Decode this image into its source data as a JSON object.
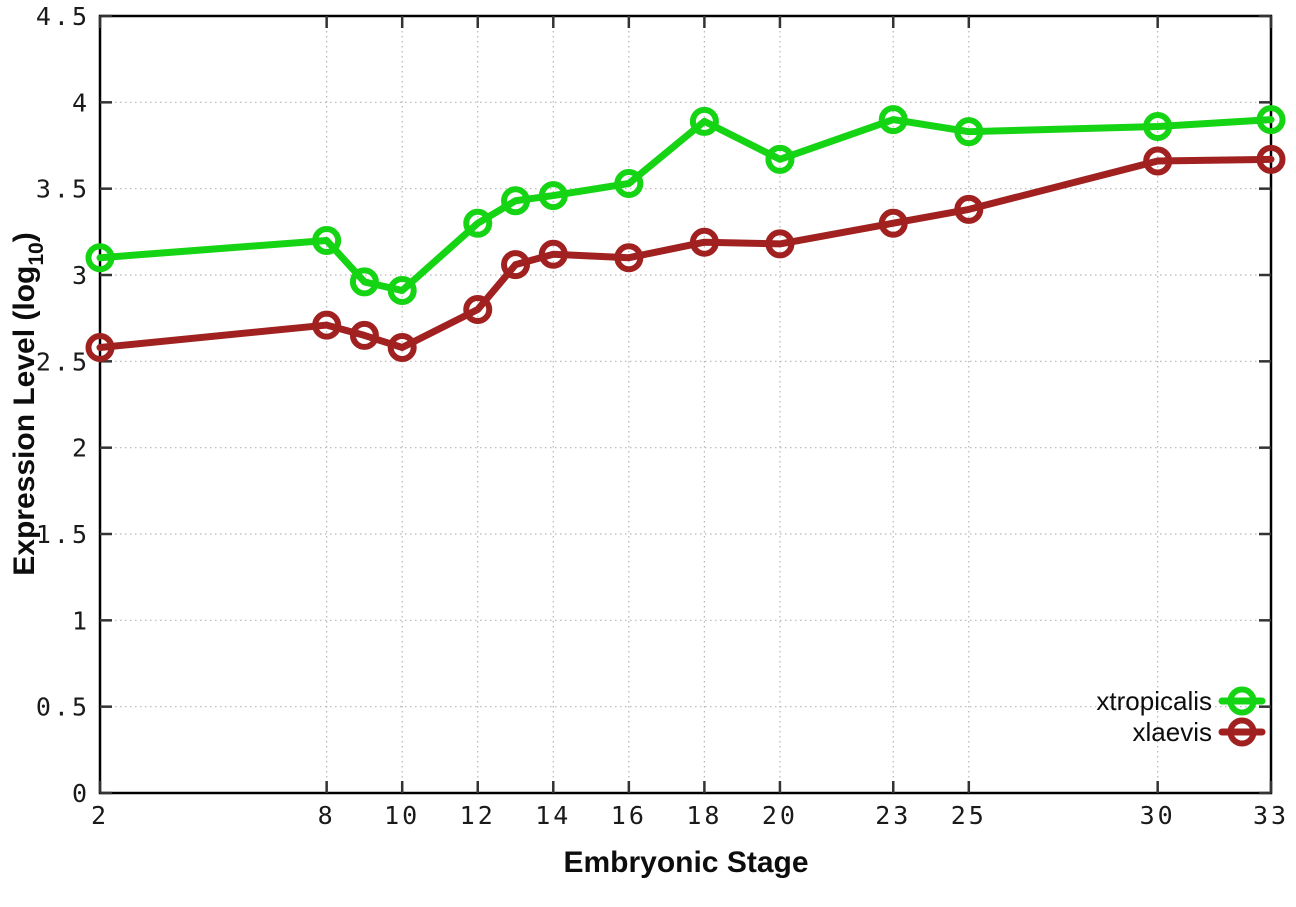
{
  "labels": {
    "xlabel": "Embryonic Stage",
    "ylabel_prefix": "Expression Level (log",
    "ylabel_sub": "10",
    "ylabel_suffix": ")",
    "ylabel_full": "Expression Level (log10)"
  },
  "legend": {
    "entries": [
      "xtropicalis",
      "xlaevis"
    ],
    "position": "inside bottom-right"
  },
  "colors": {
    "xtropicalis": "#14d414",
    "xlaevis": "#a12121",
    "grid": "#b5b5b5",
    "border": "#000000",
    "tick": "#333333",
    "text": "#1a1a1a"
  },
  "chart_data": {
    "type": "line",
    "title": "",
    "xlabel": "Embryonic Stage",
    "ylabel": "Expression Level (log10)",
    "xlim": [
      2,
      33
    ],
    "ylim": [
      0,
      4.5
    ],
    "grid": true,
    "grid_style": "dotted",
    "legend_position": "inside bottom-right",
    "x_ticks": [
      2,
      8,
      10,
      12,
      14,
      16,
      18,
      20,
      23,
      25,
      30,
      33
    ],
    "x_tick_labels": [
      "2",
      "8",
      "10",
      "12",
      "14",
      "16",
      "18",
      "20",
      "23",
      "25",
      "30",
      "33"
    ],
    "y_ticks": [
      0,
      0.5,
      1,
      1.5,
      2,
      2.5,
      3,
      3.5,
      4,
      4.5
    ],
    "y_tick_labels": [
      "0",
      "0.5",
      "1",
      "1.5",
      "2",
      "2.5",
      "3",
      "3.5",
      "4",
      "4.5"
    ],
    "x": [
      2,
      8,
      9,
      10,
      12,
      13,
      14,
      16,
      18,
      20,
      23,
      25,
      30,
      33
    ],
    "series": [
      {
        "name": "xtropicalis",
        "color": "#14d414",
        "marker": "open-circle",
        "values": [
          3.1,
          3.2,
          2.96,
          2.91,
          3.3,
          3.43,
          3.46,
          3.53,
          3.89,
          3.67,
          3.9,
          3.83,
          3.86,
          3.9
        ]
      },
      {
        "name": "xlaevis",
        "color": "#a12121",
        "marker": "open-circle",
        "values": [
          2.58,
          2.71,
          2.65,
          2.58,
          2.8,
          3.06,
          3.12,
          3.1,
          3.19,
          3.18,
          3.3,
          3.38,
          3.66,
          3.67
        ]
      }
    ]
  }
}
